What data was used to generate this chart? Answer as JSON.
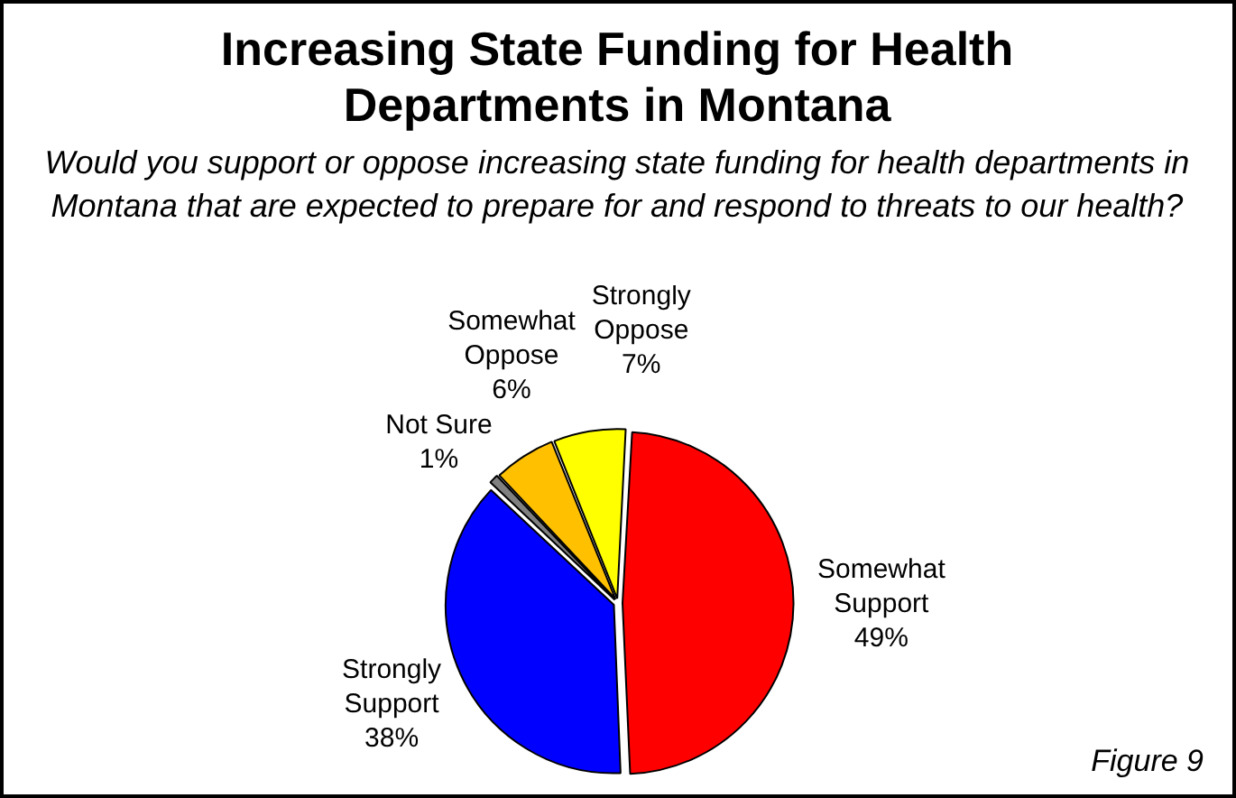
{
  "chart_data": {
    "type": "pie",
    "title": "Increasing State Funding for Health Departments in Montana",
    "subtitle": "Would you support or oppose increasing state funding for health departments in Montana that are expected to prepare for and respond to threats to our health?",
    "categories": [
      "Somewhat Support",
      "Strongly Support",
      "Not Sure",
      "Somewhat Oppose",
      "Strongly Oppose"
    ],
    "values": [
      49,
      38,
      1,
      6,
      7
    ],
    "colors": [
      "#ff0000",
      "#0000ff",
      "#808080",
      "#ffc000",
      "#ffff00"
    ],
    "value_labels": [
      "49%",
      "38%",
      "1%",
      "6%",
      "7%"
    ],
    "annotations": [
      "Figure 9"
    ],
    "legend": false
  }
}
